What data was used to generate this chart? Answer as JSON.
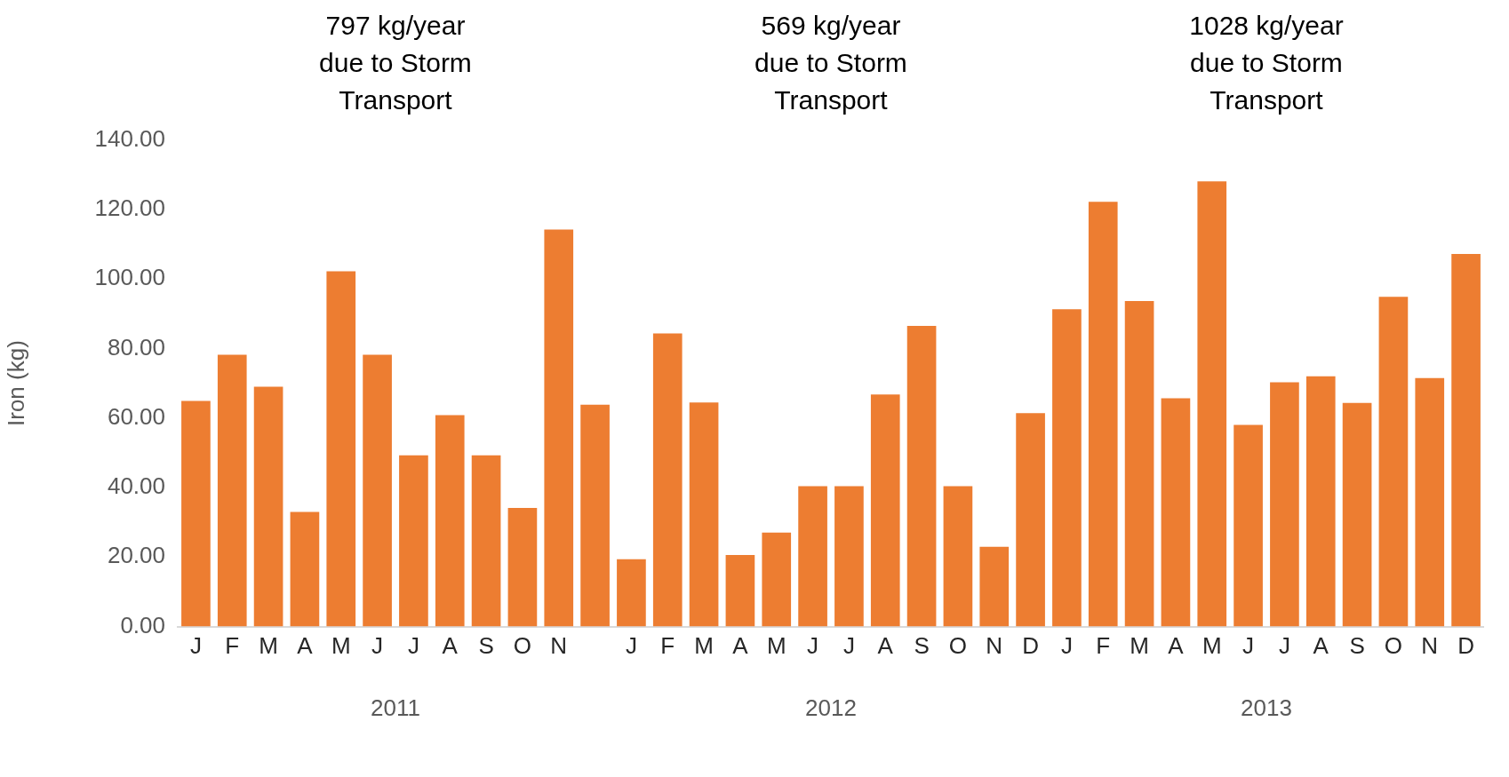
{
  "chart_data": [
    {
      "type": "bar",
      "title": "797 kg/year due to Storm Transport",
      "xlabel": "2011",
      "ylabel": "Iron (kg)",
      "categories": [
        "J",
        "F",
        "M",
        "A",
        "M",
        "J",
        "J",
        "A",
        "S",
        "O",
        "N",
        null
      ],
      "values": [
        64.9,
        78.2,
        69.0,
        33.0,
        102.2,
        78.2,
        49.3,
        60.8,
        49.3,
        34.1,
        114.2,
        63.8
      ],
      "color": "#ed7d31",
      "ylim": [
        0,
        140
      ],
      "yticks": [
        {
          "value": 0,
          "label": "0.00"
        },
        {
          "value": 20,
          "label": "20.00"
        },
        {
          "value": 40,
          "label": "40.00"
        },
        {
          "value": 60,
          "label": "60.00"
        },
        {
          "value": 80,
          "label": "80.00"
        },
        {
          "value": 100,
          "label": "100.00"
        },
        {
          "value": 120,
          "label": "120.00"
        },
        {
          "value": 140,
          "label": "140.00"
        }
      ]
    },
    {
      "type": "bar",
      "title": "569 kg/year due to Storm Transport",
      "xlabel": "2012",
      "categories": [
        "J",
        "F",
        "M",
        "A",
        "M",
        "J",
        "J",
        "A",
        "S",
        "O",
        "N",
        "D"
      ],
      "values": [
        19.2,
        83.5,
        63.8,
        20.4,
        26.8,
        40.0,
        40.0,
        66.1,
        85.6,
        40.0,
        22.7,
        60.8
      ],
      "color": "#ed7d31",
      "ylim": [
        0,
        140
      ],
      "tick_labels": "x"
    },
    {
      "type": "bar",
      "title": "1028 kg/year due to Storm Transport",
      "xlabel": "2013",
      "categories": [
        "J",
        "F",
        "M",
        "A",
        "M",
        "J",
        "J",
        "A",
        "S",
        "O",
        "N",
        "D"
      ],
      "values": [
        90.4,
        121.0,
        92.7,
        65.0,
        126.8,
        57.4,
        69.6,
        71.3,
        63.7,
        93.9,
        70.8,
        106.1
      ],
      "color": "#ed7d31",
      "ylim": [
        0,
        140
      ],
      "tick_labels": "x"
    }
  ]
}
